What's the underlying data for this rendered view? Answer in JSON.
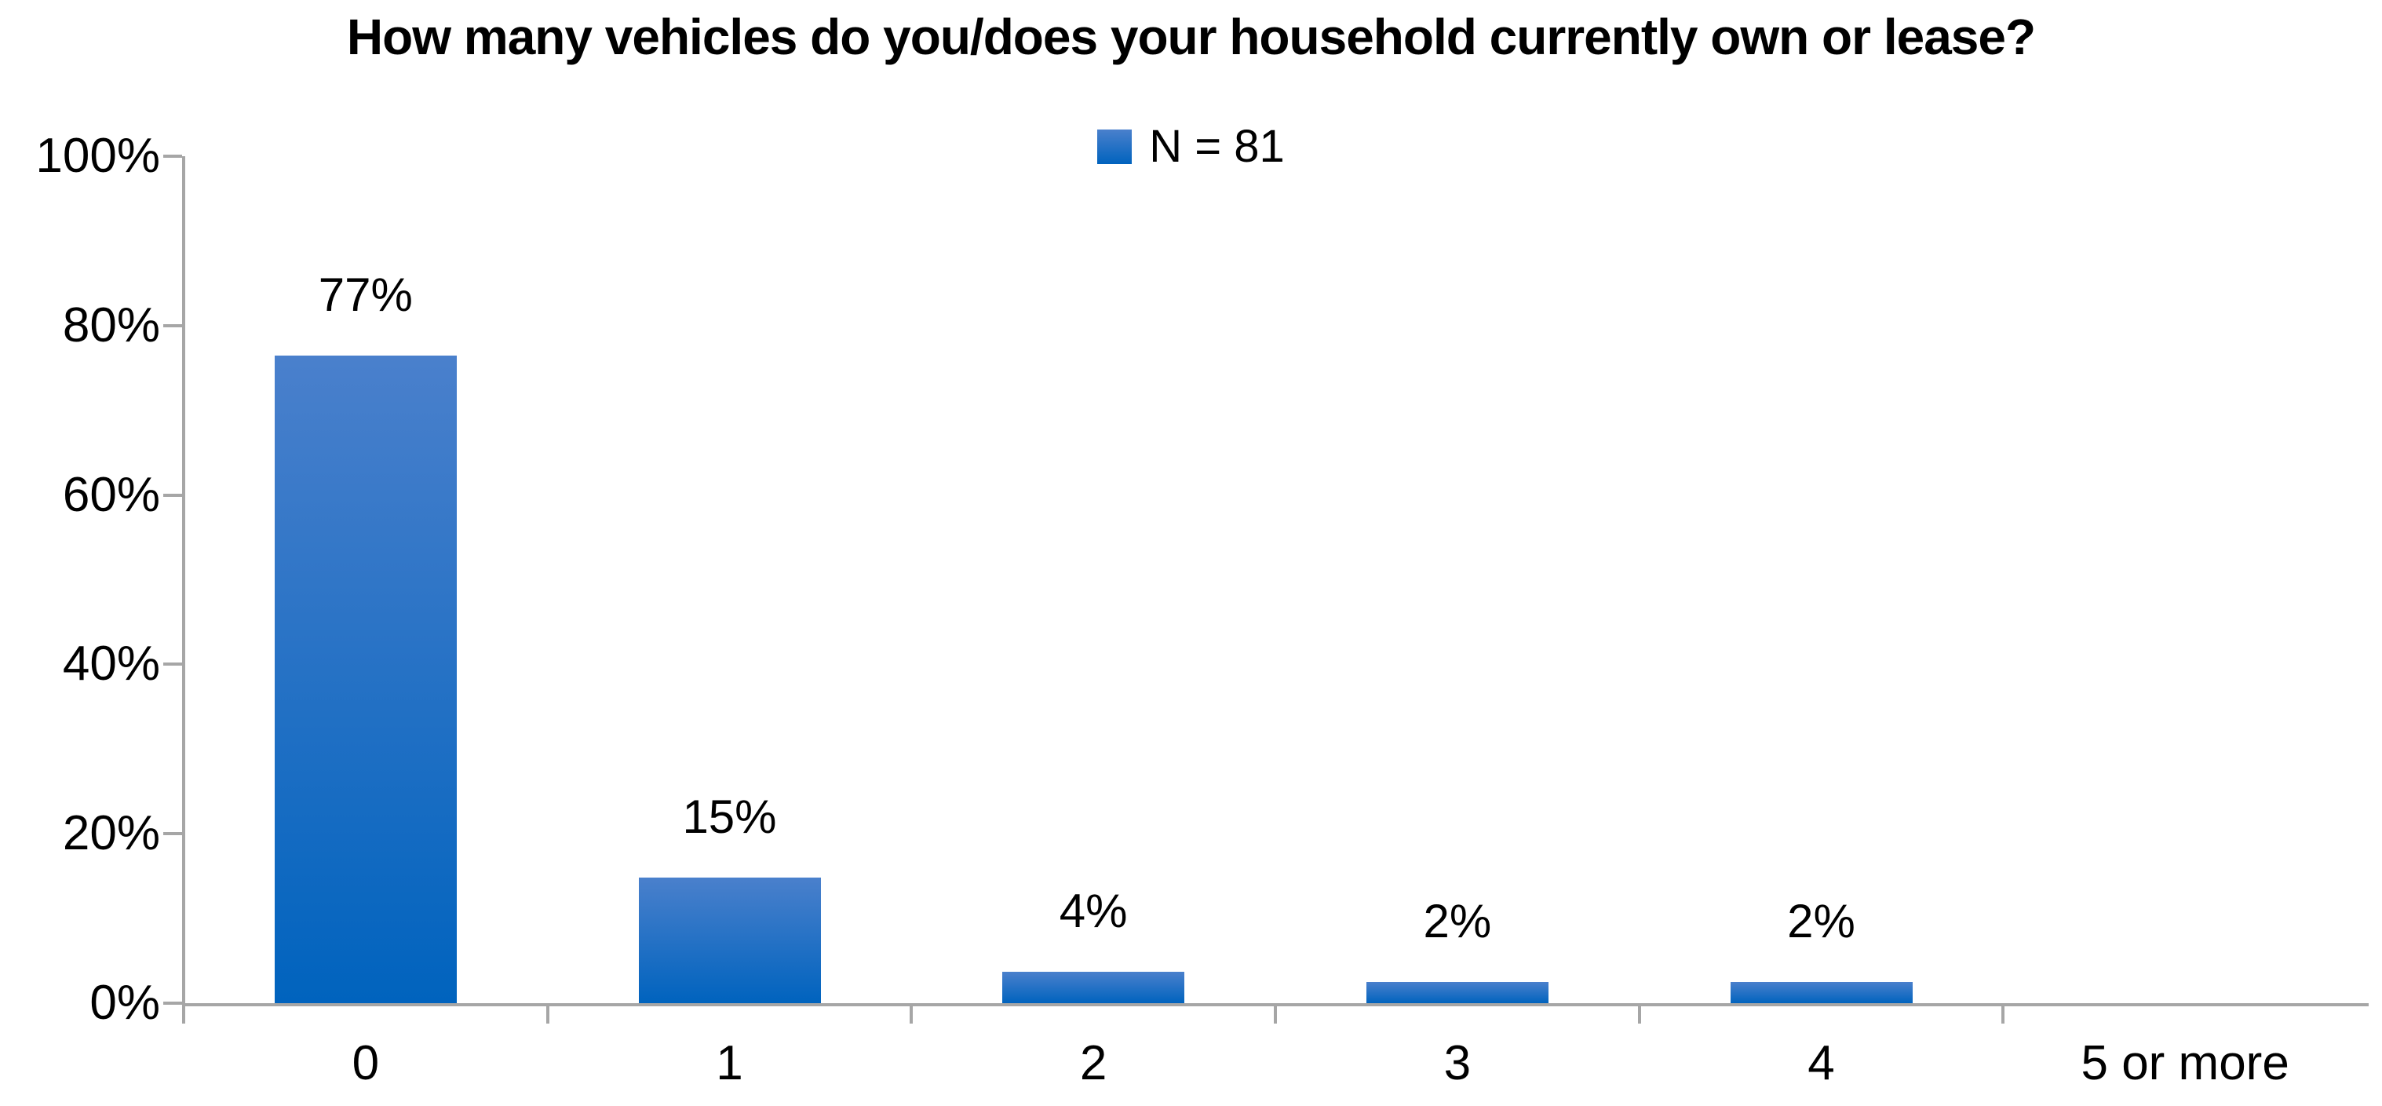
{
  "title": "How many vehicles do you/does your household currently own or lease?",
  "legend": {
    "label": "N = 81"
  },
  "colors": {
    "bar_gradient_top": "#4A80CC",
    "bar_gradient_bottom": "#0063BE",
    "axis": "#A6A6A6",
    "text": "#000000"
  },
  "chart_data": {
    "type": "bar",
    "title": "How many vehicles do you/does your household currently own or lease?",
    "categories": [
      "0",
      "1",
      "2",
      "3",
      "4",
      "5 or more"
    ],
    "values": [
      77,
      15,
      4,
      2,
      2,
      0
    ],
    "value_labels": [
      "77%",
      "15%",
      "4%",
      "2%",
      "2%",
      ""
    ],
    "precise_heights_pct": [
      76.5,
      14.8,
      3.7,
      2.5,
      2.5,
      0
    ],
    "series_name": "N = 81",
    "xlabel": "",
    "ylabel": "",
    "ylim": [
      0,
      100
    ],
    "y_tick_labels": [
      "0%",
      "20%",
      "40%",
      "60%",
      "80%",
      "100%"
    ],
    "y_tick_values": [
      0,
      20,
      40,
      60,
      80,
      100
    ],
    "grid": "off",
    "legend_position": "top-center",
    "bar_fill": "vertical gradient, light blue top to deep blue bottom"
  }
}
